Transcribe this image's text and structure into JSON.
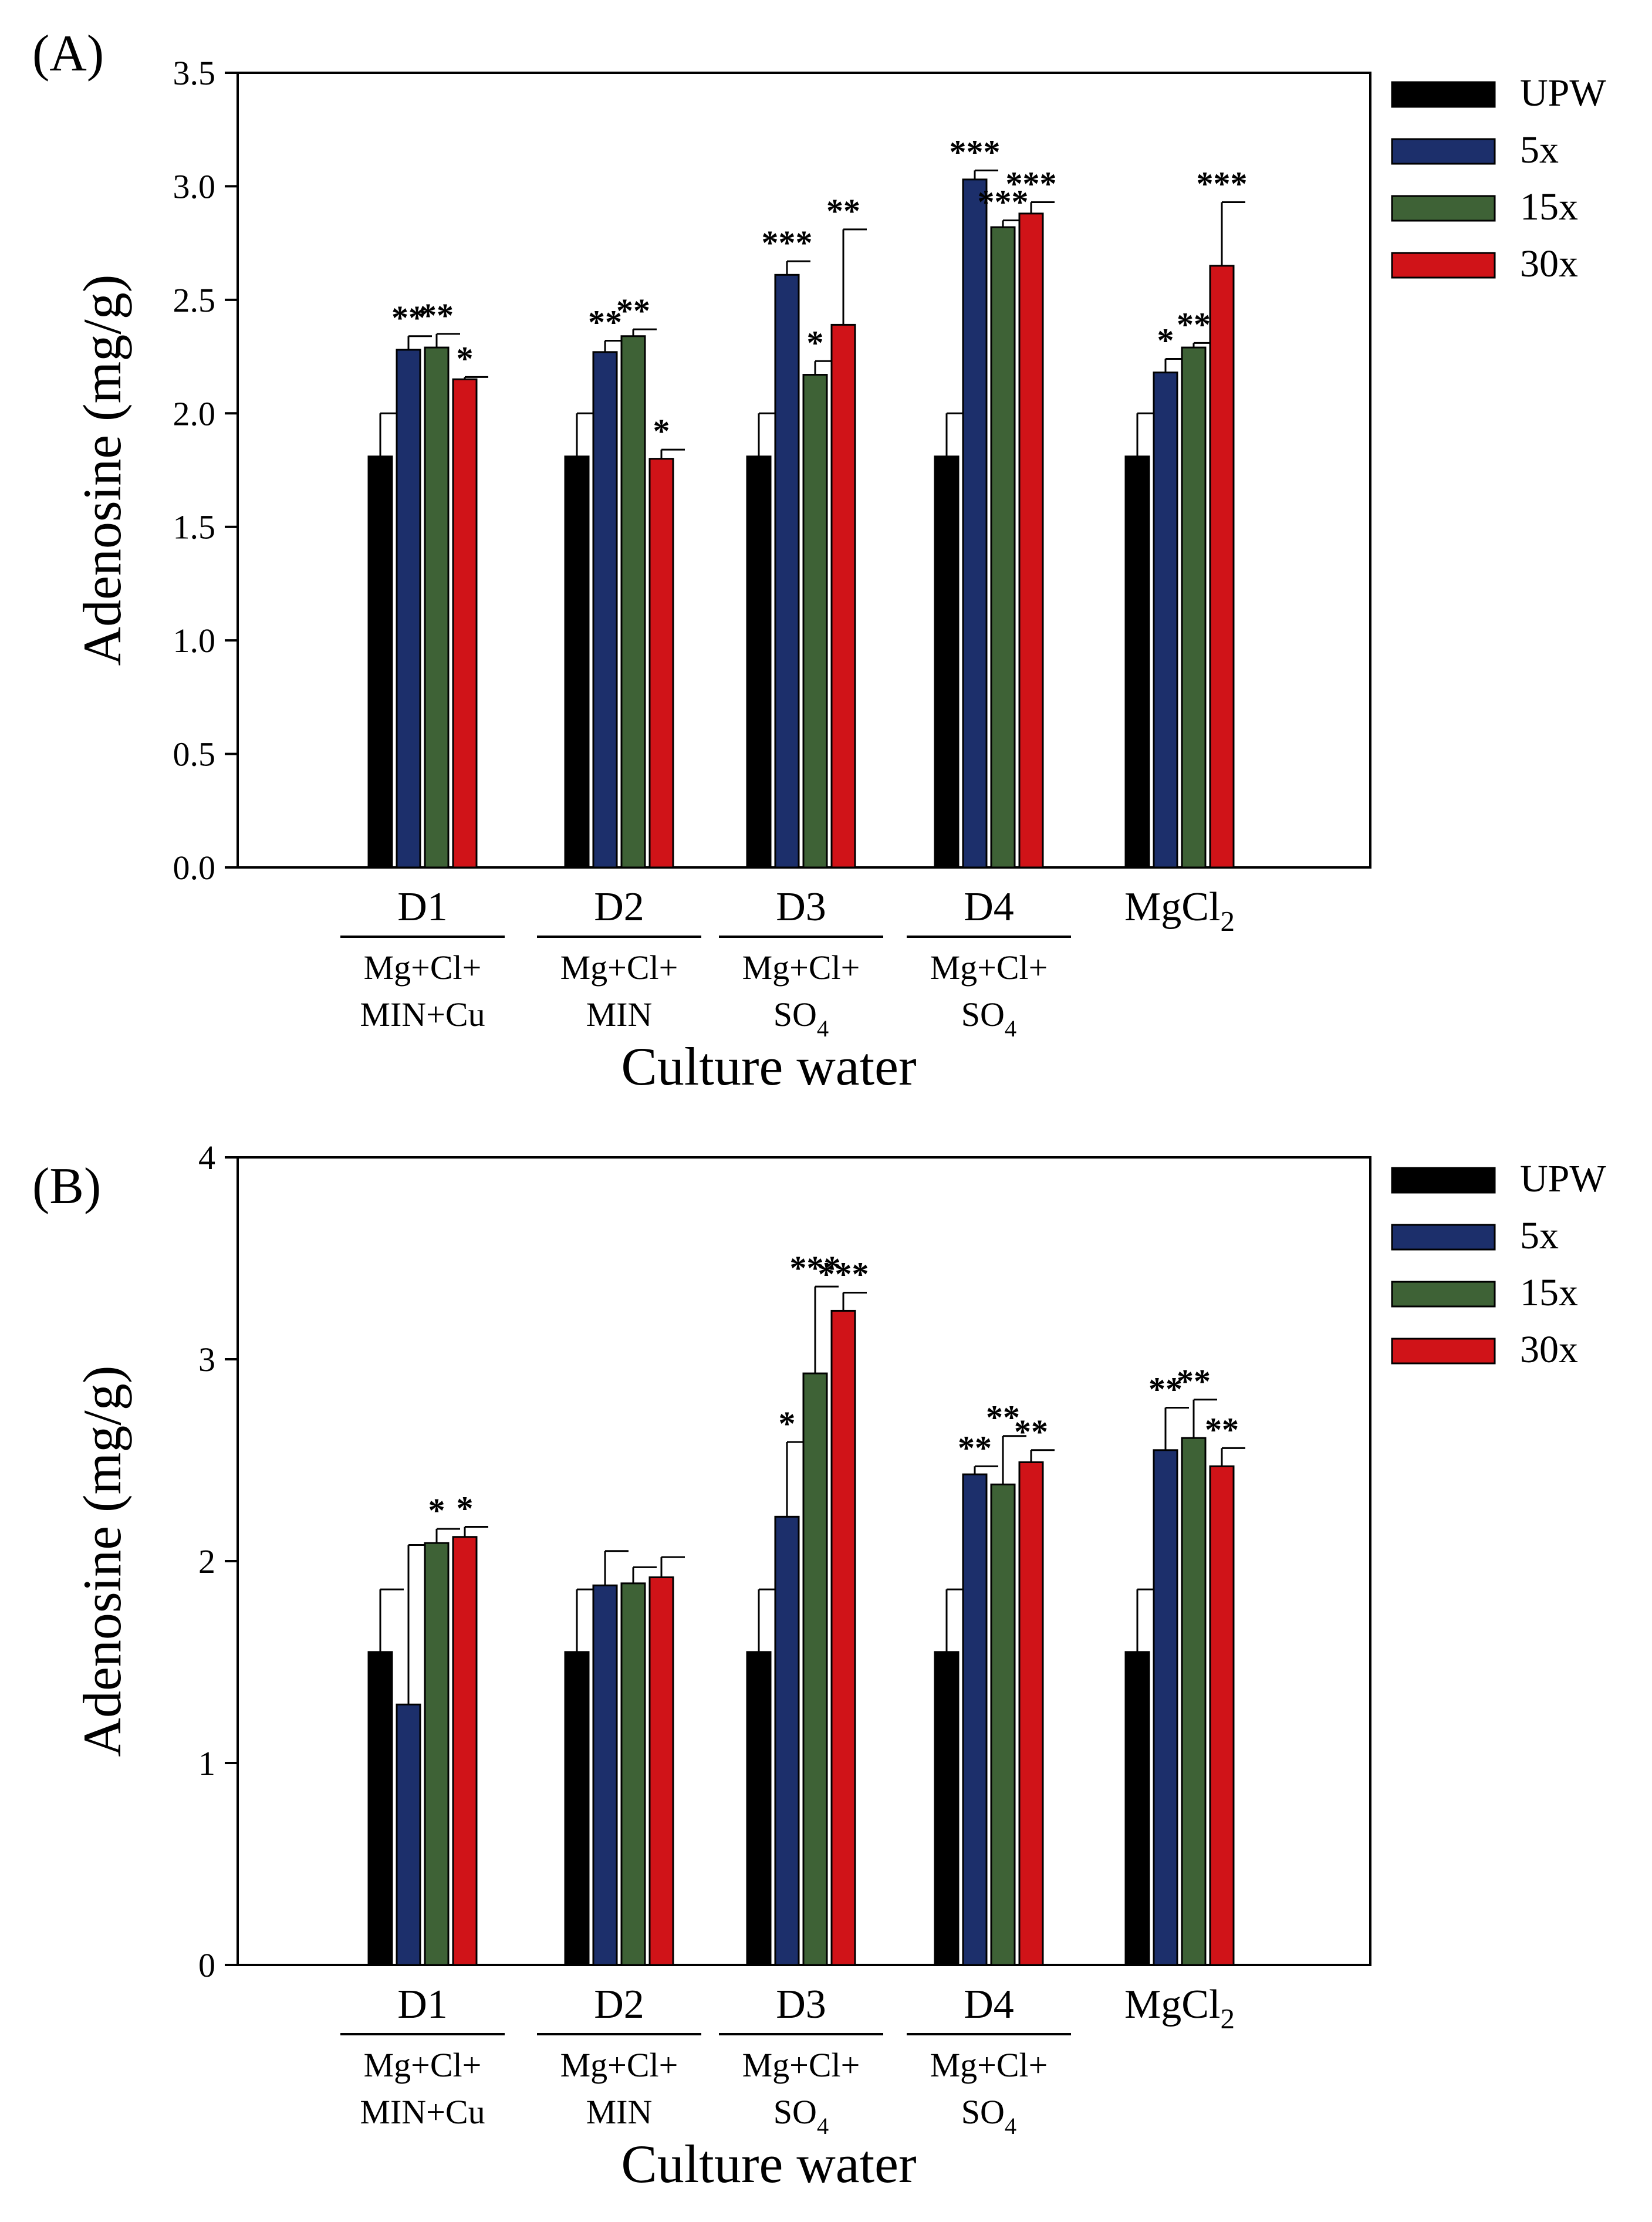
{
  "figure": {
    "background": "#ffffff"
  },
  "chart_data": [
    {
      "type": "bar",
      "panel": "(A)",
      "title": "",
      "xlabel": "Culture water",
      "ylabel": "Adenosine (mg/g)",
      "ylim": [
        0,
        3.5
      ],
      "yticks": [
        "0.0",
        "0.5",
        "1.0",
        "1.5",
        "2.0",
        "2.5",
        "3.0",
        "3.5"
      ],
      "ytick_values": [
        0,
        0.5,
        1,
        1.5,
        2,
        2.5,
        3,
        3.5
      ],
      "grid": false,
      "legend_position": "right",
      "categories": [
        {
          "name": "D1",
          "desc": [
            "Mg+Cl+",
            "MIN+Cu"
          ],
          "underline": true
        },
        {
          "name": "D2",
          "desc": [
            "Mg+Cl+",
            "MIN"
          ],
          "underline": true
        },
        {
          "name": "D3",
          "desc": [
            "Mg+Cl+",
            "SO"
          ],
          "desc_sub": "4",
          "underline": true
        },
        {
          "name": "D4",
          "desc": [
            "Mg+Cl+",
            "SO"
          ],
          "desc_sub": "4",
          "underline": true
        },
        {
          "name": "MgCl",
          "name_sub": "2",
          "desc": [],
          "underline": false
        }
      ],
      "series": [
        {
          "name": "UPW",
          "color": "#000000",
          "values": [
            1.81,
            1.81,
            1.81,
            1.81,
            1.81
          ],
          "errors": [
            0.19,
            0.19,
            0.19,
            0.19,
            0.19
          ],
          "sig": [
            "",
            "",
            "",
            "",
            ""
          ]
        },
        {
          "name": "5x",
          "color": "#1c2f6b",
          "values": [
            2.28,
            2.27,
            2.61,
            3.03,
            2.18
          ],
          "errors": [
            0.06,
            0.05,
            0.06,
            0.04,
            0.06
          ],
          "sig": [
            "**",
            "**",
            "***",
            "***",
            "*"
          ]
        },
        {
          "name": "15x",
          "color": "#3e6236",
          "values": [
            2.29,
            2.34,
            2.17,
            2.82,
            2.29
          ],
          "errors": [
            0.06,
            0.03,
            0.06,
            0.03,
            0.02
          ],
          "sig": [
            "**",
            "**",
            "*",
            "***",
            "**"
          ]
        },
        {
          "name": "30x",
          "color": "#d01318",
          "values": [
            2.15,
            1.8,
            2.39,
            2.88,
            2.65
          ],
          "errors": [
            0.01,
            0.04,
            0.42,
            0.05,
            0.28
          ],
          "sig": [
            "*",
            "*",
            "**",
            "***",
            "***"
          ]
        }
      ]
    },
    {
      "type": "bar",
      "panel": "(B)",
      "title": "",
      "xlabel": "Culture water",
      "ylabel": "Adenosine (mg/g)",
      "ylim": [
        0,
        4
      ],
      "yticks": [
        "0",
        "1",
        "2",
        "3",
        "4"
      ],
      "ytick_values": [
        0,
        1,
        2,
        3,
        4
      ],
      "grid": false,
      "legend_position": "right",
      "categories": [
        {
          "name": "D1",
          "desc": [
            "Mg+Cl+",
            "MIN+Cu"
          ],
          "underline": true
        },
        {
          "name": "D2",
          "desc": [
            "Mg+Cl+",
            "MIN"
          ],
          "underline": true
        },
        {
          "name": "D3",
          "desc": [
            "Mg+Cl+",
            "SO"
          ],
          "desc_sub": "4",
          "underline": true
        },
        {
          "name": "D4",
          "desc": [
            "Mg+Cl+",
            "SO"
          ],
          "desc_sub": "4",
          "underline": true
        },
        {
          "name": "MgCl",
          "name_sub": "2",
          "desc": [],
          "underline": false
        }
      ],
      "series": [
        {
          "name": "UPW",
          "color": "#000000",
          "values": [
            1.55,
            1.55,
            1.55,
            1.55,
            1.55
          ],
          "errors": [
            0.31,
            0.31,
            0.31,
            0.31,
            0.31
          ],
          "sig": [
            "",
            "",
            "",
            "",
            ""
          ]
        },
        {
          "name": "5x",
          "color": "#1c2f6b",
          "values": [
            1.29,
            1.88,
            2.22,
            2.43,
            2.55
          ],
          "errors": [
            0.79,
            0.17,
            0.37,
            0.04,
            0.21
          ],
          "sig": [
            "",
            "",
            "*",
            "**",
            "**"
          ]
        },
        {
          "name": "15x",
          "color": "#3e6236",
          "values": [
            2.09,
            1.89,
            2.93,
            2.38,
            2.61
          ],
          "errors": [
            0.07,
            0.08,
            0.43,
            0.24,
            0.19
          ],
          "sig": [
            "*",
            "",
            "***",
            "**",
            "**"
          ]
        },
        {
          "name": "30x",
          "color": "#d01318",
          "values": [
            2.12,
            1.92,
            3.24,
            2.49,
            2.47
          ],
          "errors": [
            0.05,
            0.1,
            0.09,
            0.06,
            0.09
          ],
          "sig": [
            "*",
            "",
            "***",
            "**",
            "**"
          ]
        }
      ]
    }
  ]
}
